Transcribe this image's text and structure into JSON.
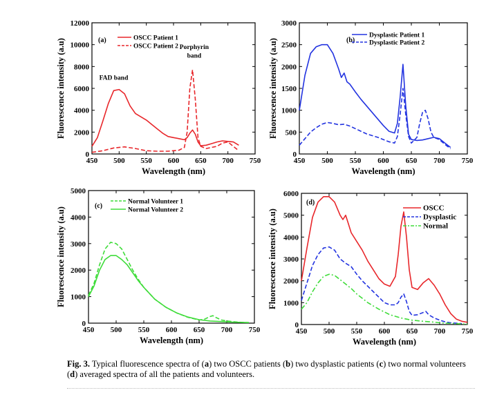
{
  "figure": {
    "caption_label": "Fig. 3.",
    "caption_parts": [
      {
        "t": "  Typical fluorescence spectra of (",
        "b": false
      },
      {
        "t": "a",
        "b": true
      },
      {
        "t": ") two OSCC patients (",
        "b": false
      },
      {
        "t": "b",
        "b": true
      },
      {
        "t": ") two dysplastic patients (",
        "b": false
      },
      {
        "t": "c",
        "b": true
      },
      {
        "t": ") two normal volunteers (",
        "b": false
      },
      {
        "t": "d",
        "b": true
      },
      {
        "t": ") averaged spectra of all the patients and volunteers.",
        "b": false
      }
    ]
  },
  "colors": {
    "red": "#e8262a",
    "blue": "#2233e0",
    "green": "#3fdc3a"
  },
  "chart_data": [
    {
      "id": "a",
      "type": "line",
      "panel_label": "(a)",
      "xlabel": "Wavelength (nm)",
      "ylabel": "Fluorescence intensity (a.u)",
      "xlim": [
        450,
        750
      ],
      "ylim": [
        0,
        12000
      ],
      "xticks": [
        450,
        500,
        550,
        600,
        650,
        700,
        750
      ],
      "yticks": [
        0,
        2000,
        4000,
        6000,
        8000,
        10000,
        12000
      ],
      "legend_position": "top-left",
      "series": [
        {
          "name": "OSCC Patient 1",
          "color": "red",
          "dash": "solid",
          "x": [
            450,
            460,
            470,
            480,
            490,
            500,
            510,
            520,
            530,
            540,
            550,
            560,
            570,
            580,
            590,
            600,
            610,
            620,
            625,
            630,
            635,
            640,
            645,
            650,
            660,
            670,
            680,
            690,
            700,
            710,
            720
          ],
          "y": [
            700,
            1500,
            3000,
            4600,
            5800,
            5900,
            5500,
            4400,
            3700,
            3400,
            3100,
            2700,
            2300,
            1900,
            1600,
            1500,
            1400,
            1300,
            1500,
            1900,
            2200,
            1800,
            1100,
            750,
            800,
            950,
            1100,
            1200,
            1150,
            1100,
            800
          ]
        },
        {
          "name": "OSCC Patient 2",
          "color": "red",
          "dash": "dashed",
          "x": [
            450,
            470,
            490,
            510,
            530,
            550,
            570,
            590,
            610,
            620,
            625,
            630,
            635,
            640,
            645,
            650,
            660,
            680,
            690,
            700,
            710,
            720
          ],
          "y": [
            150,
            300,
            550,
            650,
            500,
            300,
            250,
            250,
            350,
            600,
            2000,
            6000,
            7700,
            5000,
            1500,
            700,
            500,
            700,
            1000,
            1100,
            700,
            300
          ]
        }
      ],
      "annotations": [
        {
          "text": "FAD band",
          "x": 490,
          "y": 6800
        },
        {
          "text": "Porphyrin",
          "x": 638,
          "y": 9600
        },
        {
          "text": "band",
          "x": 638,
          "y": 8800
        }
      ]
    },
    {
      "id": "b",
      "type": "line",
      "panel_label": "(b)",
      "xlabel": "Wavelength (nm)",
      "ylabel": "Fluorescence intensity (a.u)",
      "xlim": [
        450,
        750
      ],
      "ylim": [
        0,
        3000
      ],
      "xticks": [
        450,
        500,
        550,
        600,
        650,
        700,
        750
      ],
      "yticks": [
        0,
        500,
        1000,
        1500,
        2000,
        2500,
        3000
      ],
      "legend_position": "top-right",
      "series": [
        {
          "name": "Dysplastic Patient 1",
          "color": "blue",
          "dash": "solid",
          "x": [
            450,
            460,
            470,
            480,
            490,
            500,
            510,
            520,
            525,
            530,
            535,
            540,
            550,
            560,
            570,
            580,
            590,
            600,
            610,
            620,
            625,
            630,
            635,
            640,
            645,
            650,
            660,
            670,
            680,
            690,
            700,
            710,
            720
          ],
          "y": [
            1000,
            1800,
            2300,
            2450,
            2500,
            2500,
            2300,
            1950,
            1750,
            1850,
            1650,
            1600,
            1420,
            1250,
            1100,
            950,
            800,
            650,
            520,
            480,
            700,
            1300,
            2050,
            1100,
            450,
            330,
            310,
            320,
            350,
            380,
            350,
            250,
            150
          ]
        },
        {
          "name": "Dysplastic Patient 2",
          "color": "blue",
          "dash": "dashed",
          "x": [
            450,
            460,
            470,
            480,
            490,
            500,
            510,
            520,
            530,
            540,
            550,
            560,
            570,
            580,
            590,
            600,
            610,
            620,
            625,
            630,
            635,
            640,
            645,
            650,
            660,
            665,
            670,
            675,
            680,
            685,
            690,
            700,
            710,
            720
          ],
          "y": [
            200,
            350,
            500,
            600,
            680,
            720,
            700,
            670,
            680,
            640,
            580,
            520,
            460,
            420,
            380,
            330,
            280,
            250,
            400,
            900,
            1500,
            900,
            400,
            250,
            380,
            700,
            950,
            1000,
            800,
            500,
            380,
            330,
            220,
            120
          ]
        }
      ]
    },
    {
      "id": "c",
      "type": "line",
      "panel_label": "(c)",
      "xlabel": "Wavelength (nm)",
      "ylabel": "Fluorescence intensity (a.u)",
      "xlim": [
        450,
        750
      ],
      "ylim": [
        0,
        5000
      ],
      "xticks": [
        450,
        500,
        550,
        600,
        650,
        700,
        750
      ],
      "yticks": [
        0,
        1000,
        2000,
        3000,
        4000,
        5000
      ],
      "legend_position": "top-left",
      "series": [
        {
          "name": "Normal Volunteer 1",
          "color": "green",
          "dash": "dashed",
          "x": [
            450,
            460,
            470,
            480,
            490,
            500,
            510,
            520,
            530,
            540,
            550,
            570,
            590,
            610,
            630,
            650,
            660,
            670,
            675,
            680,
            690,
            700,
            720,
            740
          ],
          "y": [
            1050,
            1500,
            2200,
            2800,
            3050,
            3000,
            2800,
            2400,
            2000,
            1650,
            1350,
            900,
            600,
            380,
            220,
            120,
            150,
            250,
            280,
            220,
            120,
            80,
            40,
            20
          ]
        },
        {
          "name": "Normal Volunteer 2",
          "color": "green",
          "dash": "solid",
          "x": [
            450,
            460,
            470,
            480,
            490,
            500,
            510,
            520,
            530,
            540,
            550,
            570,
            590,
            610,
            630,
            650,
            670,
            690,
            710,
            740
          ],
          "y": [
            1000,
            1400,
            2000,
            2400,
            2550,
            2550,
            2400,
            2200,
            1900,
            1600,
            1350,
            900,
            600,
            380,
            230,
            130,
            80,
            60,
            40,
            20
          ]
        }
      ]
    },
    {
      "id": "d",
      "type": "line",
      "panel_label": "(d)",
      "xlabel": "Wavelength (nm)",
      "ylabel": "Fluorescence intensity (a.u)",
      "xlim": [
        450,
        750
      ],
      "ylim": [
        0,
        6000
      ],
      "xticks": [
        450,
        500,
        550,
        600,
        650,
        700,
        750
      ],
      "yticks": [
        0,
        1000,
        2000,
        3000,
        4000,
        5000,
        6000
      ],
      "legend_position": "top-right",
      "series": [
        {
          "name": "OSCC",
          "color": "red",
          "dash": "solid",
          "x": [
            450,
            460,
            470,
            480,
            490,
            500,
            510,
            520,
            525,
            530,
            535,
            540,
            550,
            560,
            570,
            580,
            590,
            600,
            610,
            620,
            625,
            630,
            635,
            640,
            645,
            650,
            660,
            670,
            680,
            690,
            700,
            710,
            720,
            730,
            740,
            750
          ],
          "y": [
            2000,
            3500,
            4900,
            5600,
            5850,
            5850,
            5600,
            5000,
            4800,
            5000,
            4600,
            4200,
            3800,
            3400,
            2900,
            2500,
            2100,
            1850,
            1750,
            2200,
            3200,
            4500,
            5150,
            4000,
            2500,
            1700,
            1600,
            1900,
            2100,
            1800,
            1400,
            900,
            500,
            250,
            150,
            100
          ]
        },
        {
          "name": "Dysplastic",
          "color": "blue",
          "dash": "dashed",
          "x": [
            450,
            460,
            470,
            480,
            490,
            500,
            510,
            520,
            530,
            540,
            550,
            560,
            570,
            580,
            590,
            600,
            610,
            620,
            625,
            630,
            635,
            640,
            645,
            650,
            660,
            670,
            675,
            680,
            690,
            700,
            710,
            720,
            740
          ],
          "y": [
            1100,
            1900,
            2700,
            3200,
            3500,
            3550,
            3400,
            3000,
            2800,
            2650,
            2300,
            2000,
            1750,
            1500,
            1250,
            1000,
            900,
            900,
            1000,
            1250,
            1400,
            1050,
            600,
            420,
            450,
            550,
            600,
            450,
            300,
            200,
            120,
            80,
            40
          ]
        },
        {
          "name": "Normal",
          "color": "green",
          "dash": "dashdot",
          "x": [
            450,
            460,
            470,
            480,
            490,
            500,
            510,
            520,
            530,
            540,
            550,
            570,
            590,
            610,
            630,
            650,
            670,
            680,
            690,
            700,
            720,
            740,
            750
          ],
          "y": [
            700,
            1000,
            1500,
            1900,
            2200,
            2300,
            2250,
            2050,
            1850,
            1650,
            1400,
            1000,
            700,
            450,
            300,
            200,
            150,
            130,
            110,
            80,
            50,
            30,
            20
          ]
        }
      ]
    }
  ]
}
